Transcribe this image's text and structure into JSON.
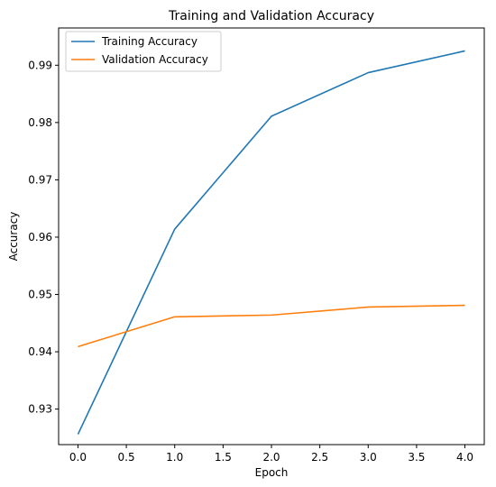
{
  "chart_data": {
    "type": "line",
    "title": "Training and Validation Accuracy",
    "xlabel": "Epoch",
    "ylabel": "Accuracy",
    "x": [
      0,
      1,
      2,
      3,
      4
    ],
    "xlim": [
      -0.2,
      4.2
    ],
    "ylim": [
      0.9238,
      0.9965
    ],
    "xticks": [
      0.0,
      0.5,
      1.0,
      1.5,
      2.0,
      2.5,
      3.0,
      3.5,
      4.0
    ],
    "xtick_labels": [
      "0.0",
      "0.5",
      "1.0",
      "1.5",
      "2.0",
      "2.5",
      "3.0",
      "3.5",
      "4.0"
    ],
    "yticks": [
      0.93,
      0.94,
      0.95,
      0.96,
      0.97,
      0.98,
      0.99
    ],
    "ytick_labels": [
      "0.93",
      "0.94",
      "0.95",
      "0.96",
      "0.97",
      "0.98",
      "0.99"
    ],
    "grid": false,
    "legend_position": "top-left",
    "series": [
      {
        "name": "Training Accuracy",
        "color": "#1f77b4",
        "values": [
          0.9256,
          0.9614,
          0.9811,
          0.9887,
          0.9925
        ]
      },
      {
        "name": "Validation Accuracy",
        "color": "#ff7f0e",
        "values": [
          0.9409,
          0.9461,
          0.9464,
          0.9478,
          0.9481
        ]
      }
    ]
  }
}
